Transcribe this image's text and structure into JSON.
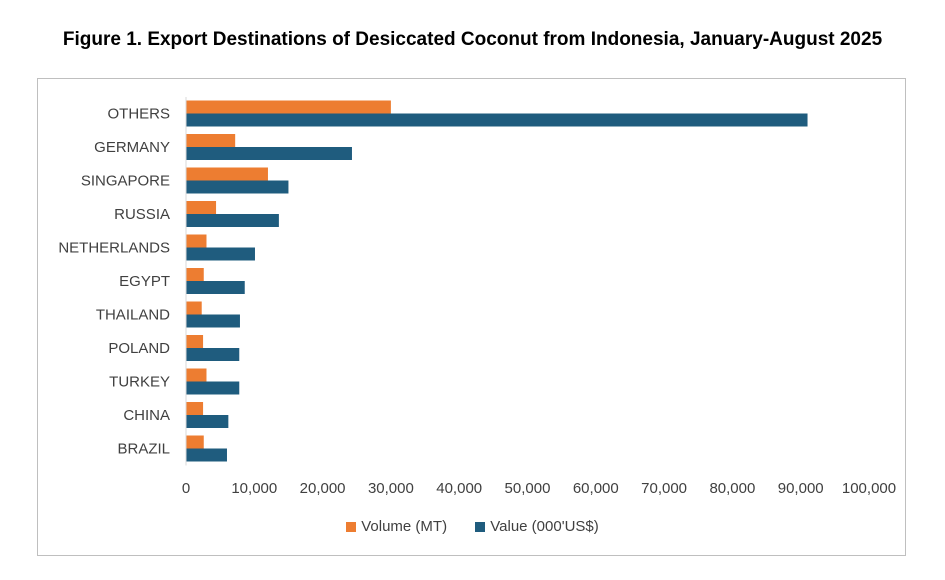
{
  "title": "Figure 1. Export Destinations of Desiccated Coconut from Indonesia, January-August 2025",
  "colors": {
    "volume": "#ED7D31",
    "value": "#1F5C7E",
    "axis": "#d9d9d9"
  },
  "chart_data": {
    "type": "bar",
    "orientation": "horizontal",
    "title": "Figure 1. Export Destinations of Desiccated Coconut from Indonesia, January-August 2025",
    "categories": [
      "OTHERS",
      "GERMANY",
      "SINGAPORE",
      "RUSSIA",
      "NETHERLANDS",
      "EGYPT",
      "THAILAND",
      "POLAND",
      "TURKEY",
      "CHINA",
      "BRAZIL"
    ],
    "series": [
      {
        "name": "Volume (MT)",
        "values": [
          30000,
          7200,
          12000,
          4400,
          3000,
          2600,
          2300,
          2500,
          3000,
          2500,
          2600
        ]
      },
      {
        "name": "Value (000'US$)",
        "values": [
          91000,
          24300,
          15000,
          13600,
          10100,
          8600,
          7900,
          7800,
          7800,
          6200,
          6000
        ]
      }
    ],
    "xlim": [
      0,
      100000
    ],
    "xticks": [
      "0",
      "10,000",
      "20,000",
      "30,000",
      "40,000",
      "50,000",
      "60,000",
      "70,000",
      "80,000",
      "90,000",
      "100,000"
    ],
    "grid": false,
    "legend": "bottom"
  }
}
